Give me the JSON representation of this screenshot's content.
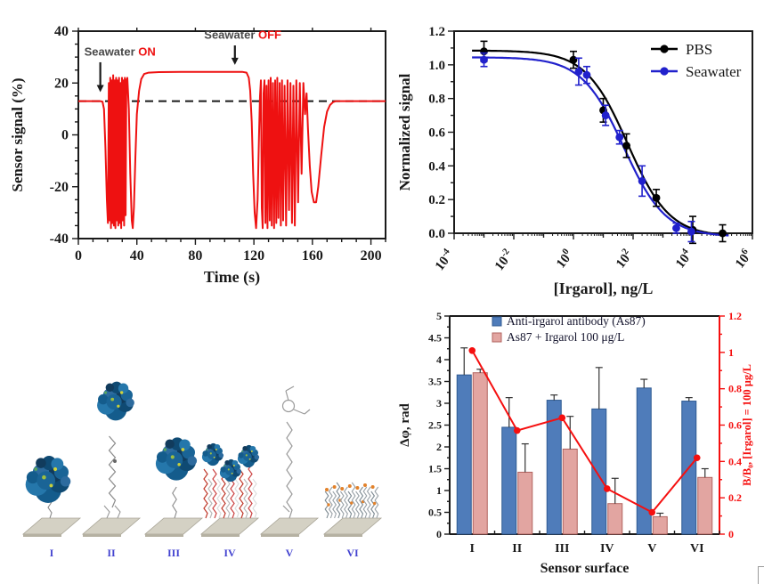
{
  "colors": {
    "trace_red": "#ee1111",
    "accent_red": "#ee1111",
    "annotation_gray": "#4a4a4a",
    "pbs_black": "#000000",
    "seawater_blue": "#2121cc",
    "bar_blue": "#4f7cba",
    "bar_blue_border": "#2f5a92",
    "bar_pink": "#e2a5a1",
    "bar_pink_border": "#b2635f",
    "line_red": "#f50f0f",
    "axis_black": "#1a1a1a",
    "surface_label_blue": "#4343d0",
    "plate_top": "#d4d1c4",
    "plate_edge": "#a8a496"
  },
  "chart_data": [
    {
      "id": "sensor-signal",
      "type": "line",
      "xlabel": "Time (s)",
      "ylabel": "Sensor signal (%)",
      "xlim": [
        0,
        210
      ],
      "ylim": [
        -40,
        40
      ],
      "xticks": [
        0,
        40,
        80,
        120,
        160,
        200
      ],
      "yticks": [
        -40,
        -20,
        0,
        20,
        40
      ],
      "x_minor_step": 10,
      "y_minor_step": 5,
      "baseline_dashed_y": 13,
      "annotations": [
        {
          "text_plain": "Seawater",
          "text_accent": "ON",
          "text_x": 4,
          "text_y": 30.5,
          "arrow_x": 15,
          "arrow_from": 28,
          "arrow_to": 16.5
        },
        {
          "text_plain": "Seawater",
          "text_accent": "OFF",
          "text_x": 86,
          "text_y": 37,
          "arrow_x": 107,
          "arrow_from": 34.5,
          "arrow_to": 27
        }
      ],
      "series": [
        {
          "name": "sensor-trace",
          "color": "#ee1111",
          "points": [
            [
              0,
              13
            ],
            [
              15,
              13
            ],
            [
              16.5,
              12.8
            ],
            [
              17.5,
              10
            ],
            [
              18.5,
              -5
            ],
            [
              19.5,
              -25
            ],
            [
              20.2,
              -34
            ],
            [
              20.8,
              20
            ],
            [
              21.3,
              -33
            ],
            [
              21.8,
              22
            ],
            [
              22.3,
              -36
            ],
            [
              22.8,
              21
            ],
            [
              23.3,
              -34
            ],
            [
              23.8,
              23
            ],
            [
              24.3,
              -35
            ],
            [
              24.8,
              21
            ],
            [
              25.3,
              -36
            ],
            [
              25.8,
              22
            ],
            [
              26.3,
              -33
            ],
            [
              26.8,
              21
            ],
            [
              27.3,
              -35
            ],
            [
              27.8,
              22
            ],
            [
              28.3,
              -34
            ],
            [
              28.8,
              20
            ],
            [
              29.3,
              -36
            ],
            [
              29.8,
              22
            ],
            [
              30.3,
              -33
            ],
            [
              30.8,
              21
            ],
            [
              31.3,
              -35
            ],
            [
              31.8,
              22
            ],
            [
              32.3,
              -31
            ],
            [
              32.8,
              21
            ],
            [
              33.5,
              22
            ],
            [
              34.5,
              10
            ],
            [
              35.5,
              -15
            ],
            [
              36.5,
              -33
            ],
            [
              37.2,
              -36
            ],
            [
              38,
              -28
            ],
            [
              39,
              -8
            ],
            [
              40,
              8
            ],
            [
              41.5,
              17
            ],
            [
              43,
              21.5
            ],
            [
              45,
              23.5
            ],
            [
              48,
              24
            ],
            [
              55,
              24.2
            ],
            [
              70,
              24.3
            ],
            [
              90,
              24.3
            ],
            [
              105,
              24.3
            ],
            [
              112,
              24.3
            ],
            [
              115,
              24
            ],
            [
              116.5,
              22
            ],
            [
              117.5,
              17
            ],
            [
              118.5,
              5
            ],
            [
              119.5,
              -15
            ],
            [
              120.5,
              -30
            ],
            [
              121.5,
              -36
            ],
            [
              122.5,
              -25
            ],
            [
              123.5,
              0
            ],
            [
              124.2,
              15
            ],
            [
              124.8,
              21
            ],
            [
              125.4,
              -28
            ],
            [
              126,
              -36
            ],
            [
              126.6,
              16
            ],
            [
              127.2,
              21
            ],
            [
              127.9,
              -34
            ],
            [
              128.6,
              19
            ],
            [
              129.3,
              -36
            ],
            [
              130,
              21
            ],
            [
              130.8,
              -33
            ],
            [
              131.5,
              22
            ],
            [
              132.2,
              -35
            ],
            [
              133,
              20
            ],
            [
              133.8,
              -36
            ],
            [
              134.5,
              21
            ],
            [
              135.3,
              -34
            ],
            [
              136,
              22
            ],
            [
              136.8,
              -32
            ],
            [
              137.6,
              20
            ],
            [
              138.4,
              -35
            ],
            [
              139.2,
              21
            ],
            [
              140,
              -33
            ],
            [
              141,
              19
            ],
            [
              142,
              -35
            ],
            [
              143,
              21
            ],
            [
              144,
              -29
            ],
            [
              145,
              20
            ],
            [
              146,
              -34
            ],
            [
              147,
              19
            ],
            [
              148,
              -35
            ],
            [
              149,
              21
            ],
            [
              150.2,
              -26
            ],
            [
              151.4,
              20
            ],
            [
              152.6,
              -15
            ],
            [
              153.8,
              20
            ],
            [
              155,
              8
            ],
            [
              156,
              16
            ],
            [
              157,
              2
            ],
            [
              158.2,
              -12
            ],
            [
              159.5,
              -22
            ],
            [
              161,
              -26
            ],
            [
              162.5,
              -26
            ],
            [
              164,
              -20
            ],
            [
              166,
              -8
            ],
            [
              168,
              3
            ],
            [
              170,
              9
            ],
            [
              172,
              11.5
            ],
            [
              174,
              12.6
            ],
            [
              176,
              13
            ],
            [
              210,
              13
            ]
          ]
        }
      ]
    },
    {
      "id": "dose-response",
      "type": "scatter",
      "xlabel": "[Irgarol], ng/L",
      "ylabel": "Normalized signal",
      "x_log_range": [
        -4,
        6
      ],
      "x_tick_exponents": [
        -4,
        -2,
        0,
        2,
        4,
        6
      ],
      "ylim": [
        0,
        1.2
      ],
      "yticks": [
        0.0,
        0.2,
        0.4,
        0.6,
        0.8,
        1.0,
        1.2
      ],
      "y_minor_step": 0.1,
      "legend": [
        "PBS",
        "Seawater"
      ],
      "series": [
        {
          "name": "PBS",
          "color": "#000000",
          "points_x": [
            0.001,
            1,
            10,
            60,
            600,
            10000,
            100000
          ],
          "points_y": [
            1.08,
            1.03,
            0.73,
            0.52,
            0.21,
            0.02,
            0.0
          ],
          "errors": [
            0.06,
            0.05,
            0.07,
            0.07,
            0.05,
            0.08,
            0.05
          ],
          "fit": {
            "top": 1.085,
            "bottom": -0.02,
            "ec50": 65,
            "hill": 0.62
          }
        },
        {
          "name": "Seawater",
          "color": "#2121cc",
          "points_x": [
            0.001,
            1.5,
            2.8,
            12,
            35,
            200,
            2800,
            9000
          ],
          "points_y": [
            1.03,
            0.96,
            0.94,
            0.7,
            0.57,
            0.31,
            0.03,
            0.01
          ],
          "errors": [
            0.04,
            0.08,
            0.05,
            0.06,
            0.04,
            0.09,
            0.03,
            0.06
          ],
          "fit": {
            "top": 1.045,
            "bottom": -0.02,
            "ec50": 48,
            "hill": 0.62
          }
        }
      ]
    },
    {
      "id": "surface-bars",
      "type": "bar",
      "xlabel": "Sensor surface",
      "ylabel_left": "Δφ, rad",
      "ylabel_right": "B/B₀, [Irgarol] = 100 μg/L",
      "categories": [
        "I",
        "II",
        "III",
        "IV",
        "V",
        "VI"
      ],
      "ylim_left": [
        0,
        5
      ],
      "ytick_step_left": 0.5,
      "ylim_right": [
        0,
        1.2
      ],
      "ytick_step_right": 0.2,
      "legend": [
        "Anti-irgarol antibody (As87)",
        "As87 + Irgarol 100 μg/L"
      ],
      "series": [
        {
          "name": "Anti-irgarol antibody (As87)",
          "values": [
            3.65,
            2.45,
            3.07,
            2.87,
            3.35,
            3.05
          ],
          "errors": [
            0.62,
            0.68,
            0.12,
            0.95,
            0.2,
            0.08
          ]
        },
        {
          "name": "As87 + Irgarol 100 μg/L",
          "values": [
            3.7,
            1.42,
            1.95,
            0.7,
            0.4,
            1.3
          ],
          "errors": [
            0.08,
            0.65,
            0.75,
            0.58,
            0.08,
            0.2
          ]
        }
      ],
      "line_series": {
        "name": "B/B0 at 100 ug/L",
        "axis": "right",
        "values": [
          1.01,
          0.57,
          0.64,
          0.25,
          0.12,
          0.42
        ]
      }
    }
  ],
  "surfaces": {
    "items": [
      {
        "label": "I",
        "kind": "antibody-direct"
      },
      {
        "label": "II",
        "kind": "antibody-long-linker"
      },
      {
        "label": "III",
        "kind": "antibody-short-linker"
      },
      {
        "label": "IV",
        "kind": "antibody-mixed-brush"
      },
      {
        "label": "V",
        "kind": "linker-molecule-only"
      },
      {
        "label": "VI",
        "kind": "brush-with-hapten"
      }
    ]
  }
}
